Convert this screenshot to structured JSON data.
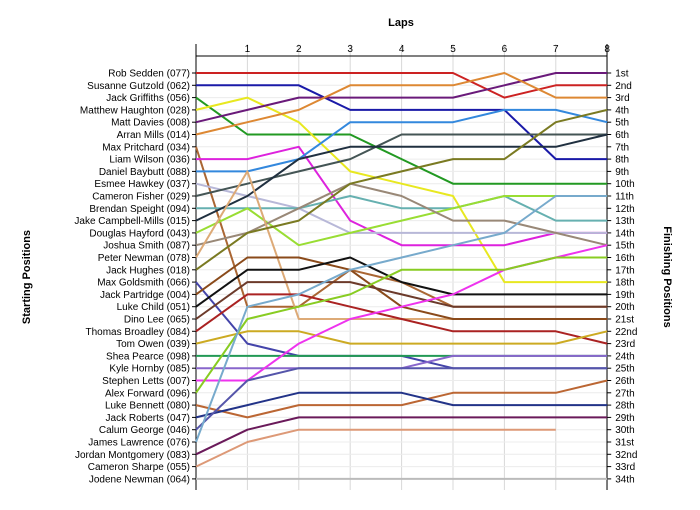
{
  "chart_data": {
    "type": "line",
    "xlabel": "Laps",
    "ylabel_left": "Starting Positions",
    "ylabel_right": "Finishing Positions",
    "x": [
      0,
      1,
      2,
      3,
      4,
      5,
      6,
      7,
      8
    ],
    "x_tick_labels": [
      "1",
      "2",
      "3",
      "4",
      "5",
      "6",
      "7",
      "8"
    ],
    "positions_range": [
      1,
      34
    ],
    "grid": true,
    "starting_labels": [
      "Rob Sedden (077)",
      "Susanne Gutzold (062)",
      "Jack Griffiths (056)",
      "Matthew Haughton (028)",
      "Matt Davies (008)",
      "Arran Mills (014)",
      "Max Pritchard (034)",
      "Liam Wilson (036)",
      "Daniel Baybutt (088)",
      "Esmee Hawkey (037)",
      "Cameron Fisher (029)",
      "Brendan Speight (094)",
      "Jake Campbell-Mills (015)",
      "Douglas Hayford (043)",
      "Joshua Smith (087)",
      "Peter Newman (078)",
      "Jack Hughes (018)",
      "Max Goldsmith (066)",
      "Jack Partridge (004)",
      "Luke Child (051)",
      "Dino Lee (065)",
      "Thomas Broadley (084)",
      "Tom Owen (039)",
      "Shea Pearce (098)",
      "Kyle Hornby (085)",
      "Stephen Letts (007)",
      "Alex Forward (096)",
      "Luke Bennett (080)",
      "Jack Roberts (047)",
      "Calum George (046)",
      "James Lawrence (076)",
      "Jordan Montgomery (083)",
      "Cameron Sharpe (055)",
      "Jodene Newman (064)"
    ],
    "finishing_labels": [
      "1st",
      "2nd",
      "3rd",
      "4th",
      "5th",
      "6th",
      "7th",
      "8th",
      "9th",
      "10th",
      "11th",
      "12th",
      "13th",
      "14th",
      "15th",
      "16th",
      "17th",
      "18th",
      "19th",
      "20th",
      "21st",
      "22nd",
      "23rd",
      "24th",
      "25th",
      "26th",
      "27th",
      "28th",
      "29th",
      "30th",
      "31st",
      "32nd",
      "33rd",
      "34th"
    ],
    "series": [
      {
        "color": "#cc2222",
        "positions": [
          1,
          1,
          1,
          1,
          1,
          1,
          3,
          2,
          2
        ]
      },
      {
        "color": "#1a1aa8",
        "positions": [
          2,
          2,
          2,
          4,
          4,
          4,
          4,
          8,
          8
        ]
      },
      {
        "color": "#229922",
        "positions": [
          3,
          6,
          6,
          6,
          8,
          10,
          10,
          10,
          10
        ]
      },
      {
        "color": "#e8e820",
        "positions": [
          4,
          3,
          5,
          9,
          10,
          11,
          18,
          18,
          18
        ]
      },
      {
        "color": "#6a1a7a",
        "positions": [
          5,
          4,
          3,
          3,
          3,
          3,
          2,
          1,
          1
        ]
      },
      {
        "color": "#dd8833",
        "positions": [
          6,
          5,
          4,
          2,
          2,
          2,
          1,
          3,
          3
        ]
      },
      {
        "color": "#aa6633",
        "positions": [
          7,
          20,
          20,
          17,
          18,
          20,
          20,
          20,
          20
        ]
      },
      {
        "color": "#dd22dd",
        "positions": [
          8,
          8,
          7,
          13,
          15,
          15,
          15,
          14,
          14
        ]
      },
      {
        "color": "#3388dd",
        "positions": [
          9,
          9,
          8,
          5,
          5,
          5,
          4,
          4,
          5
        ]
      },
      {
        "color": "#b8b8d8",
        "positions": [
          10,
          11,
          12,
          14,
          14,
          14,
          14,
          14,
          14
        ]
      },
      {
        "color": "#445555",
        "positions": [
          11,
          10,
          9,
          8,
          6,
          6,
          6,
          6,
          6
        ]
      },
      {
        "color": "#66b0b0",
        "positions": [
          12,
          12,
          12,
          11,
          12,
          12,
          11,
          13,
          13
        ]
      },
      {
        "color": "#203040",
        "positions": [
          13,
          11,
          8,
          7,
          7,
          7,
          7,
          7,
          6
        ]
      },
      {
        "color": "#99dd33",
        "positions": [
          14,
          12,
          15,
          14,
          13,
          12,
          11,
          11,
          11
        ]
      },
      {
        "color": "#998877",
        "positions": [
          15,
          14,
          12,
          10,
          11,
          13,
          13,
          14,
          15
        ]
      },
      {
        "color": "#ddaa77",
        "positions": [
          16,
          9,
          21,
          21,
          21,
          21,
          21,
          21,
          21
        ]
      },
      {
        "color": "#7a7a22",
        "positions": [
          17,
          14,
          13,
          10,
          9,
          8,
          8,
          5,
          4
        ]
      },
      {
        "color": "#4444aa",
        "positions": [
          18,
          23,
          24,
          24,
          24,
          25,
          25,
          25,
          25
        ]
      },
      {
        "color": "#8a4a1a",
        "positions": [
          19,
          16,
          16,
          17,
          20,
          21,
          21,
          21,
          21
        ]
      },
      {
        "color": "#111111",
        "positions": [
          20,
          17,
          17,
          16,
          18,
          19,
          19,
          19,
          19
        ]
      },
      {
        "color": "#6c3a2a",
        "positions": [
          21,
          18,
          18,
          18,
          19,
          20,
          20,
          20,
          20
        ]
      },
      {
        "color": "#aa2222",
        "positions": [
          22,
          19,
          19,
          20,
          21,
          22,
          22,
          22,
          23
        ]
      },
      {
        "color": "#ccaa22",
        "positions": [
          23,
          22,
          22,
          23,
          23,
          23,
          23,
          23,
          22
        ]
      },
      {
        "color": "#229955",
        "positions": [
          24,
          24,
          24,
          24,
          24,
          24,
          24,
          24,
          24
        ]
      },
      {
        "color": "#8866cc",
        "positions": [
          25,
          25,
          25,
          25,
          25,
          24,
          24,
          24,
          24
        ]
      },
      {
        "color": "#ee33ee",
        "positions": [
          26,
          26,
          23,
          21,
          20,
          19,
          17,
          16,
          15
        ]
      },
      {
        "color": "#88cc22",
        "positions": [
          27,
          21,
          20,
          19,
          17,
          17,
          17,
          16,
          16
        ]
      },
      {
        "color": "#bb6633",
        "positions": [
          28,
          29,
          28,
          28,
          28,
          27,
          27,
          27,
          26
        ]
      },
      {
        "color": "#223388",
        "positions": [
          29,
          28,
          27,
          27,
          27,
          28,
          28,
          28,
          28
        ]
      },
      {
        "color": "#5555aa",
        "positions": [
          30,
          26,
          25,
          25,
          25,
          25,
          25,
          25,
          25
        ]
      },
      {
        "color": "#77aacc",
        "positions": [
          31,
          20,
          19,
          17,
          16,
          15,
          14,
          11,
          11
        ]
      },
      {
        "color": "#6a1a5a",
        "positions": [
          32,
          30,
          29,
          29,
          29,
          29,
          29,
          29,
          29
        ]
      },
      {
        "color": "#dd9977",
        "positions": [
          33,
          31,
          30,
          30,
          30,
          30,
          30,
          30,
          null
        ]
      },
      {
        "color": "#bbbbbb",
        "positions": [
          34,
          34,
          34,
          34,
          34,
          34,
          34,
          34,
          34
        ]
      }
    ]
  }
}
